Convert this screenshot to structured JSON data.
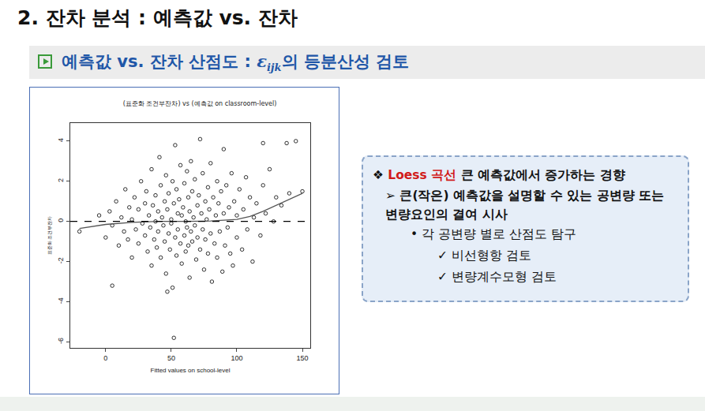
{
  "slide": {
    "header": "2. 잔차 분석 : 예측값 vs. 잔차",
    "subtitle": {
      "before": "예측값 vs. 잔차 산점도 : ",
      "symbol": "ε",
      "subscript": "ijk",
      "after": "의 등분산성 검토"
    },
    "notes": [
      {
        "level": 0,
        "bullet": "❖",
        "highlight": "Loess 곡선",
        "text": " 큰 예측값에서 증가하는 경향"
      },
      {
        "level": 1,
        "bullet": "➢",
        "text": "큰(작은) 예측값을 설명할 수 있는 공변량 또는 변량요인의 결여 시사"
      },
      {
        "level": 2,
        "bullet": "•",
        "text": "각 공변량 별로 산점도 탐구"
      },
      {
        "level": 3,
        "bullet": "✓",
        "text": "비선형항 검토"
      },
      {
        "level": 3,
        "bullet": "✓",
        "text": "변량계수모형 검토"
      }
    ]
  },
  "chart_data": {
    "type": "scatter",
    "title": "(표준화 조건부잔차) vs (예측값 on classroom-level)",
    "x_label": "Fitted values on school-level",
    "y_label": "표준화 조건부잔차",
    "xlim": [
      -27,
      156
    ],
    "xticks": [
      0,
      50,
      100,
      150
    ],
    "ylim": [
      -6.3,
      4.9
    ],
    "yticks": [
      -6,
      -4,
      -2,
      0,
      2,
      4
    ],
    "grid": false,
    "series": [
      {
        "type": "scatter",
        "marker": "open-circle",
        "color": "#000000",
        "x": [
          -20,
          -5,
          0,
          3,
          5,
          8,
          10,
          12,
          14,
          15,
          17,
          18,
          20,
          20,
          22,
          23,
          25,
          25,
          27,
          28,
          30,
          30,
          31,
          32,
          33,
          34,
          35,
          35,
          36,
          37,
          38,
          38,
          39,
          40,
          40,
          41,
          42,
          42,
          43,
          44,
          45,
          45,
          46,
          46,
          47,
          48,
          48,
          49,
          50,
          50,
          51,
          51,
          52,
          53,
          53,
          54,
          54,
          55,
          55,
          56,
          57,
          57,
          58,
          58,
          59,
          60,
          60,
          61,
          61,
          62,
          62,
          63,
          63,
          64,
          64,
          65,
          65,
          66,
          66,
          67,
          68,
          68,
          69,
          70,
          70,
          71,
          72,
          72,
          73,
          74,
          74,
          75,
          76,
          76,
          77,
          78,
          78,
          79,
          80,
          80,
          81,
          82,
          83,
          84,
          85,
          85,
          86,
          87,
          88,
          89,
          90,
          90,
          91,
          92,
          93,
          94,
          95,
          96,
          97,
          98,
          100,
          100,
          102,
          104,
          105,
          107,
          108,
          110,
          112,
          113,
          115,
          118,
          120,
          122,
          125,
          128,
          130,
          134,
          138,
          140,
          145,
          150,
          52,
          5,
          120,
          47
        ],
        "values": [
          -0.5,
          0.3,
          -0.8,
          0.5,
          -0.2,
          1.0,
          -1.2,
          0.2,
          -0.5,
          1.6,
          -0.9,
          0.7,
          -1.8,
          0.1,
          1.2,
          -0.4,
          0.6,
          -1.1,
          2.0,
          -0.1,
          0.9,
          -0.7,
          1.5,
          -1.5,
          0.3,
          -0.3,
          2.6,
          -2.2,
          0.8,
          -0.9,
          1.3,
          0.0,
          -1.3,
          0.5,
          -0.5,
          3.2,
          1.8,
          -1.8,
          0.2,
          -0.2,
          1.0,
          -1.0,
          2.3,
          -2.6,
          0.6,
          -0.6,
          1.4,
          -1.4,
          0.1,
          -0.1,
          2.0,
          -3.3,
          0.9,
          -0.8,
          3.8,
          1.6,
          -1.7,
          0.4,
          -0.4,
          1.1,
          -1.1,
          2.8,
          0.3,
          -2.1,
          0.7,
          -0.7,
          1.9,
          -1.5,
          0.0,
          2.5,
          -0.3,
          1.2,
          -1.2,
          0.5,
          -2.8,
          3.0,
          -0.5,
          1.5,
          -1.0,
          0.2,
          -0.2,
          2.1,
          -1.9,
          0.8,
          -0.8,
          1.3,
          -1.4,
          4.1,
          0.4,
          -0.4,
          2.4,
          -2.4,
          1.0,
          -0.9,
          0.1,
          1.7,
          -1.6,
          0.6,
          -0.6,
          2.9,
          -3.0,
          1.2,
          -1.1,
          0.3,
          2.0,
          -1.8,
          0.9,
          -0.5,
          1.5,
          -2.5,
          0.4,
          3.6,
          -1.2,
          1.8,
          -0.3,
          0.7,
          -1.6,
          2.4,
          -2.2,
          1.0,
          -0.8,
          0.3,
          1.6,
          -1.4,
          0.6,
          2.2,
          -0.4,
          1.2,
          -2.0,
          0.2,
          0.9,
          -0.7,
          1.8,
          0.4,
          2.6,
          0.0,
          1.2,
          0.8,
          3.9,
          1.4,
          4.0,
          1.5,
          -5.8,
          -3.2,
          3.9,
          -3.5
        ]
      },
      {
        "type": "line",
        "line_style": "solid",
        "color": "#555555",
        "x": [
          -20,
          0,
          20,
          40,
          60,
          80,
          100,
          110,
          120,
          130,
          140,
          150
        ],
        "values": [
          -0.35,
          -0.15,
          -0.05,
          0,
          0,
          0.02,
          0.1,
          0.25,
          0.5,
          0.8,
          1.1,
          1.4
        ]
      },
      {
        "type": "line",
        "line_style": "dashed",
        "color": "#000000",
        "x": [
          -27,
          156
        ],
        "values": [
          0,
          0
        ]
      }
    ]
  }
}
